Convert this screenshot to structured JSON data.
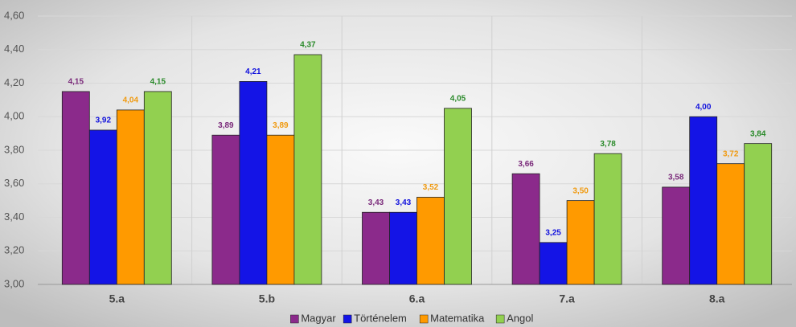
{
  "chart_data": {
    "type": "bar",
    "categories": [
      "5.a",
      "5.b",
      "6.a",
      "7.a",
      "8.a"
    ],
    "series": [
      {
        "name": "Magyar",
        "color": "#8b2a8b",
        "label_color": "#7a2a7a",
        "values": [
          4.15,
          3.89,
          3.43,
          3.66,
          3.58
        ],
        "value_labels": [
          "4,15",
          "3,89",
          "3,43",
          "3,66",
          "3,58"
        ]
      },
      {
        "name": "Történelem",
        "color": "#1414e6",
        "label_color": "#1010dd",
        "values": [
          3.92,
          4.21,
          3.43,
          3.25,
          4.0
        ],
        "value_labels": [
          "3,92",
          "4,21",
          "3,43",
          "3,25",
          "4,00"
        ]
      },
      {
        "name": "Matematika",
        "color": "#ff9a00",
        "label_color": "#f09a10",
        "values": [
          4.04,
          3.89,
          3.52,
          3.5,
          3.72
        ],
        "value_labels": [
          "4,04",
          "3,89",
          "3,52",
          "3,50",
          "3,72"
        ]
      },
      {
        "name": "Angol",
        "color": "#92d050",
        "label_color": "#2a8a2a",
        "values": [
          4.15,
          4.37,
          4.05,
          3.78,
          3.84
        ],
        "value_labels": [
          "4,15",
          "4,37",
          "4,05",
          "3,78",
          "3,84"
        ]
      }
    ],
    "ylim": [
      3.0,
      4.6
    ],
    "yticks": [
      {
        "value": 3.0,
        "label": "3,00"
      },
      {
        "value": 3.2,
        "label": "3,20"
      },
      {
        "value": 3.4,
        "label": "3,40"
      },
      {
        "value": 3.6,
        "label": "3,60"
      },
      {
        "value": 3.8,
        "label": "3,80"
      },
      {
        "value": 4.0,
        "label": "4,00"
      },
      {
        "value": 4.2,
        "label": "4,20"
      },
      {
        "value": 4.4,
        "label": "4,40"
      },
      {
        "value": 4.6,
        "label": "4,60"
      }
    ],
    "grid": true,
    "legend": "bottom"
  }
}
